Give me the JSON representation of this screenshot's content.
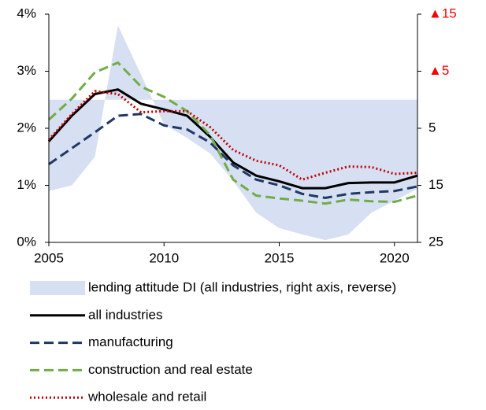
{
  "chart_data": {
    "type": "line",
    "x": [
      2005,
      2006,
      2007,
      2008,
      2009,
      2010,
      2011,
      2012,
      2013,
      2014,
      2015,
      2016,
      2017,
      2018,
      2019,
      2020,
      2021
    ],
    "xlim": [
      2005,
      2021
    ],
    "xticks": [
      2005,
      2010,
      2015,
      2020
    ],
    "ylim": [
      0,
      4
    ],
    "yticks": [
      {
        "value": 0,
        "label": "0%"
      },
      {
        "value": 1,
        "label": "1%"
      },
      {
        "value": 2,
        "label": "2%"
      },
      {
        "value": 3,
        "label": "3%"
      },
      {
        "value": 4,
        "label": "4%"
      }
    ],
    "y2lim": [
      -15,
      25
    ],
    "y2_reverse": true,
    "y2ticks": [
      {
        "value": -15,
        "label": "▲15"
      },
      {
        "value": -5,
        "label": "▲5"
      },
      5,
      15,
      25
    ],
    "y2_negative_label_color": "#ff0000",
    "series": [
      {
        "name": "lending attitude DI (all industries, right axis, reverse)",
        "kind": "area",
        "axis": "y2",
        "color": "#d6e0f2",
        "values": [
          16,
          15,
          10,
          -13,
          -4.4,
          4.3,
          6.7,
          9.4,
          14.2,
          19.8,
          22.5,
          23.6,
          24.6,
          23.6,
          19.8,
          17.7,
          15.6
        ]
      },
      {
        "name": "all industries",
        "kind": "line",
        "dash": "solid",
        "color": "#000000",
        "values": [
          1.77,
          2.22,
          2.6,
          2.68,
          2.43,
          2.33,
          2.22,
          1.85,
          1.4,
          1.17,
          1.07,
          0.95,
          0.95,
          1.04,
          1.05,
          1.05,
          1.17
        ]
      },
      {
        "name": "manufacturing",
        "kind": "line",
        "dash": "dashed",
        "color": "#1f3864",
        "values": [
          1.37,
          1.65,
          1.93,
          2.22,
          2.25,
          2.05,
          1.98,
          1.75,
          1.35,
          1.1,
          1.0,
          0.85,
          0.78,
          0.85,
          0.88,
          0.9,
          0.98
        ]
      },
      {
        "name": "construction and real estate",
        "kind": "line",
        "dash": "dashed",
        "color": "#70ad47",
        "values": [
          2.15,
          2.52,
          2.98,
          3.15,
          2.73,
          2.55,
          2.3,
          1.88,
          1.1,
          0.82,
          0.77,
          0.73,
          0.68,
          0.75,
          0.72,
          0.71,
          0.82
        ]
      },
      {
        "name": "wholesale and retail",
        "kind": "line",
        "dash": "dotted",
        "color": "#c00000",
        "values": [
          1.8,
          2.25,
          2.65,
          2.6,
          2.28,
          2.3,
          2.3,
          2.02,
          1.62,
          1.43,
          1.35,
          1.1,
          1.22,
          1.33,
          1.32,
          1.2,
          1.22
        ]
      }
    ]
  }
}
